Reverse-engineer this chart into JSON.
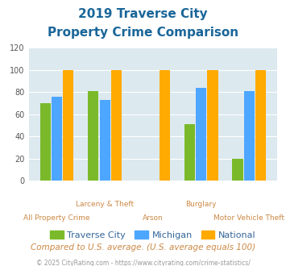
{
  "title_line1": "2019 Traverse City",
  "title_line2": "Property Crime Comparison",
  "categories": [
    "All Property Crime",
    "Larceny & Theft",
    "Arson",
    "Burglary",
    "Motor Vehicle Theft"
  ],
  "x_labels_top": [
    "",
    "Larceny & Theft",
    "",
    "Burglary",
    ""
  ],
  "x_labels_bottom": [
    "All Property Crime",
    "",
    "Arson",
    "",
    "Motor Vehicle Theft"
  ],
  "traverse_city": [
    70,
    81,
    0,
    51,
    20
  ],
  "michigan": [
    76,
    73,
    0,
    84,
    81
  ],
  "national": [
    100,
    100,
    100,
    100,
    100
  ],
  "tc_color": "#7aba2a",
  "mi_color": "#4da6ff",
  "nat_color": "#ffaa00",
  "ylim": [
    0,
    120
  ],
  "yticks": [
    0,
    20,
    40,
    60,
    80,
    100,
    120
  ],
  "background_color": "#dce9ef",
  "title_color": "#1a6699",
  "xlabel_color": "#cc8844",
  "legend_label_color": "#336699",
  "footnote_color": "#cc8844",
  "copyright_color": "#999999",
  "footnote": "Compared to U.S. average. (U.S. average equals 100)",
  "copyright": "© 2025 CityRating.com - https://www.cityrating.com/crime-statistics/"
}
